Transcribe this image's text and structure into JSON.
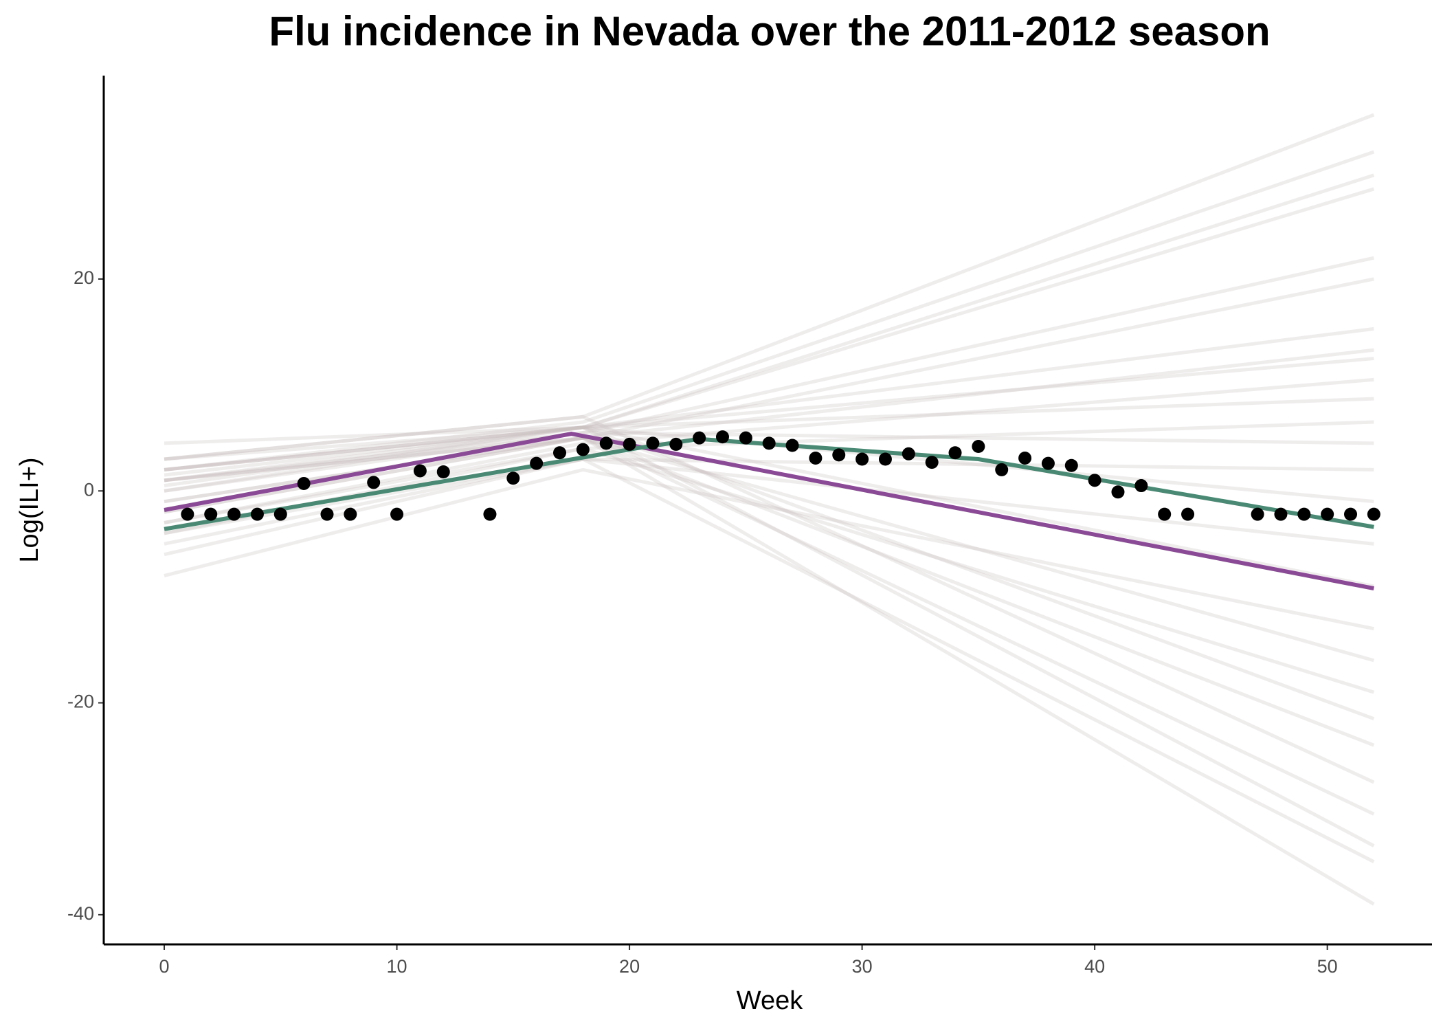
{
  "chart_data": {
    "type": "line",
    "title": "Flu incidence in Nevada over the 2011-2012 season",
    "x_label": "Week",
    "y_label": "Log(ILI+)",
    "xlim": [
      -2.6,
      54.5
    ],
    "ylim": [
      -42.8,
      39.2
    ],
    "xticks": [
      0,
      10,
      20,
      30,
      40,
      50
    ],
    "yticks": [
      -40,
      -20,
      0,
      20
    ],
    "series": [
      {
        "color": "#c9bfc0",
        "x": [
          0,
          18,
          52
        ],
        "values": [
          3,
          7,
          35.5
        ]
      },
      {
        "color": "#c9bfc0",
        "x": [
          0,
          18,
          52
        ],
        "values": [
          2,
          6.5,
          32
        ]
      },
      {
        "color": "#c9bfc0",
        "x": [
          0,
          18,
          52
        ],
        "values": [
          1.5,
          6,
          29.8
        ]
      },
      {
        "color": "#c9bfc0",
        "x": [
          0,
          18,
          52
        ],
        "values": [
          1,
          6,
          28.5
        ]
      },
      {
        "color": "#c9bfc0",
        "x": [
          0,
          18,
          52
        ],
        "values": [
          0,
          5.5,
          22
        ]
      },
      {
        "color": "#c9bfc0",
        "x": [
          0,
          18,
          52
        ],
        "values": [
          -1,
          5,
          20
        ]
      },
      {
        "color": "#c9bfc0",
        "x": [
          0,
          18,
          52
        ],
        "values": [
          4.5,
          6,
          15.3
        ]
      },
      {
        "color": "#c9bfc0",
        "x": [
          0,
          18,
          52
        ],
        "values": [
          -2,
          5,
          13.3
        ]
      },
      {
        "color": "#c9bfc0",
        "x": [
          0,
          18,
          52
        ],
        "values": [
          3,
          6,
          12.5
        ]
      },
      {
        "color": "#c9bfc0",
        "x": [
          0,
          18,
          52
        ],
        "values": [
          -3,
          4.5,
          10.5
        ]
      },
      {
        "color": "#c9bfc0",
        "x": [
          0,
          18,
          52
        ],
        "values": [
          2,
          6,
          8.7
        ]
      },
      {
        "color": "#c9bfc0",
        "x": [
          0,
          18,
          52
        ],
        "values": [
          -4,
          4,
          6.5
        ]
      },
      {
        "color": "#c9bfc0",
        "x": [
          0,
          18,
          52
        ],
        "values": [
          1,
          5.5,
          4.5
        ]
      },
      {
        "color": "#c9bfc0",
        "x": [
          0,
          18,
          52
        ],
        "values": [
          -5,
          3,
          2
        ]
      },
      {
        "color": "#c9bfc0",
        "x": [
          0,
          18,
          52
        ],
        "values": [
          0,
          6,
          -1
        ]
      },
      {
        "color": "#c9bfc0",
        "x": [
          0,
          18,
          52
        ],
        "values": [
          -6,
          3,
          -5
        ]
      },
      {
        "color": "#c9bfc0",
        "x": [
          0,
          18,
          52
        ],
        "values": [
          2,
          6,
          -9
        ]
      },
      {
        "color": "#c9bfc0",
        "x": [
          0,
          18,
          52
        ],
        "values": [
          -8,
          2,
          -13
        ]
      },
      {
        "color": "#c9bfc0",
        "x": [
          0,
          18,
          52
        ],
        "values": [
          1,
          5,
          -16
        ]
      },
      {
        "color": "#c9bfc0",
        "x": [
          0,
          18,
          52
        ],
        "values": [
          -3,
          4,
          -19
        ]
      },
      {
        "color": "#c9bfc0",
        "x": [
          0,
          18,
          52
        ],
        "values": [
          0.5,
          6,
          -21.5
        ]
      },
      {
        "color": "#c9bfc0",
        "x": [
          0,
          18,
          52
        ],
        "values": [
          -2,
          5,
          -24
        ]
      },
      {
        "color": "#c9bfc0",
        "x": [
          0,
          18,
          52
        ],
        "values": [
          3,
          7,
          -27.5
        ]
      },
      {
        "color": "#c9bfc0",
        "x": [
          0,
          18,
          52
        ],
        "values": [
          -1,
          5,
          -30.5
        ]
      },
      {
        "color": "#c9bfc0",
        "x": [
          0,
          18,
          52
        ],
        "values": [
          2,
          6,
          -33.5
        ]
      },
      {
        "color": "#c9bfc0",
        "x": [
          0,
          18,
          52
        ],
        "values": [
          -4,
          3,
          -35
        ]
      },
      {
        "color": "#c9bfc0",
        "x": [
          0,
          18,
          52
        ],
        "values": [
          1,
          5,
          -39
        ]
      },
      {
        "color": "#8b4a96",
        "x": [
          0,
          17.5,
          52
        ],
        "values": [
          -1.8,
          5.4,
          -9.2
        ]
      },
      {
        "color": "#4a8a74",
        "x": [
          0,
          20.5,
          23,
          35,
          52
        ],
        "values": [
          -3.6,
          4.1,
          4.9,
          3.0,
          -3.4
        ]
      }
    ],
    "points": {
      "color": "#000000",
      "x": [
        1,
        2,
        3,
        4,
        5,
        6,
        7,
        8,
        9,
        10,
        11,
        12,
        14,
        15,
        16,
        17,
        18,
        19,
        20,
        21,
        22,
        23,
        24,
        25,
        26,
        27,
        28,
        29,
        30,
        31,
        32,
        33,
        34,
        35,
        36,
        37,
        38,
        39,
        40,
        41,
        42,
        43,
        44,
        47,
        48,
        49,
        50,
        51,
        52
      ],
      "values": [
        -2.2,
        -2.2,
        -2.2,
        -2.2,
        -2.2,
        0.7,
        -2.2,
        -2.2,
        0.8,
        -2.2,
        1.9,
        1.8,
        -2.2,
        1.2,
        2.6,
        3.6,
        3.9,
        4.5,
        4.4,
        4.5,
        4.4,
        5.0,
        5.1,
        5.0,
        4.5,
        4.3,
        3.1,
        3.4,
        3.0,
        3.0,
        3.5,
        2.7,
        3.6,
        4.2,
        2.0,
        3.1,
        2.6,
        2.4,
        1.0,
        -0.1,
        0.5,
        -2.2,
        -2.2,
        -2.2,
        -2.2,
        -2.2,
        -2.2,
        -2.2,
        -2.2
      ]
    }
  }
}
